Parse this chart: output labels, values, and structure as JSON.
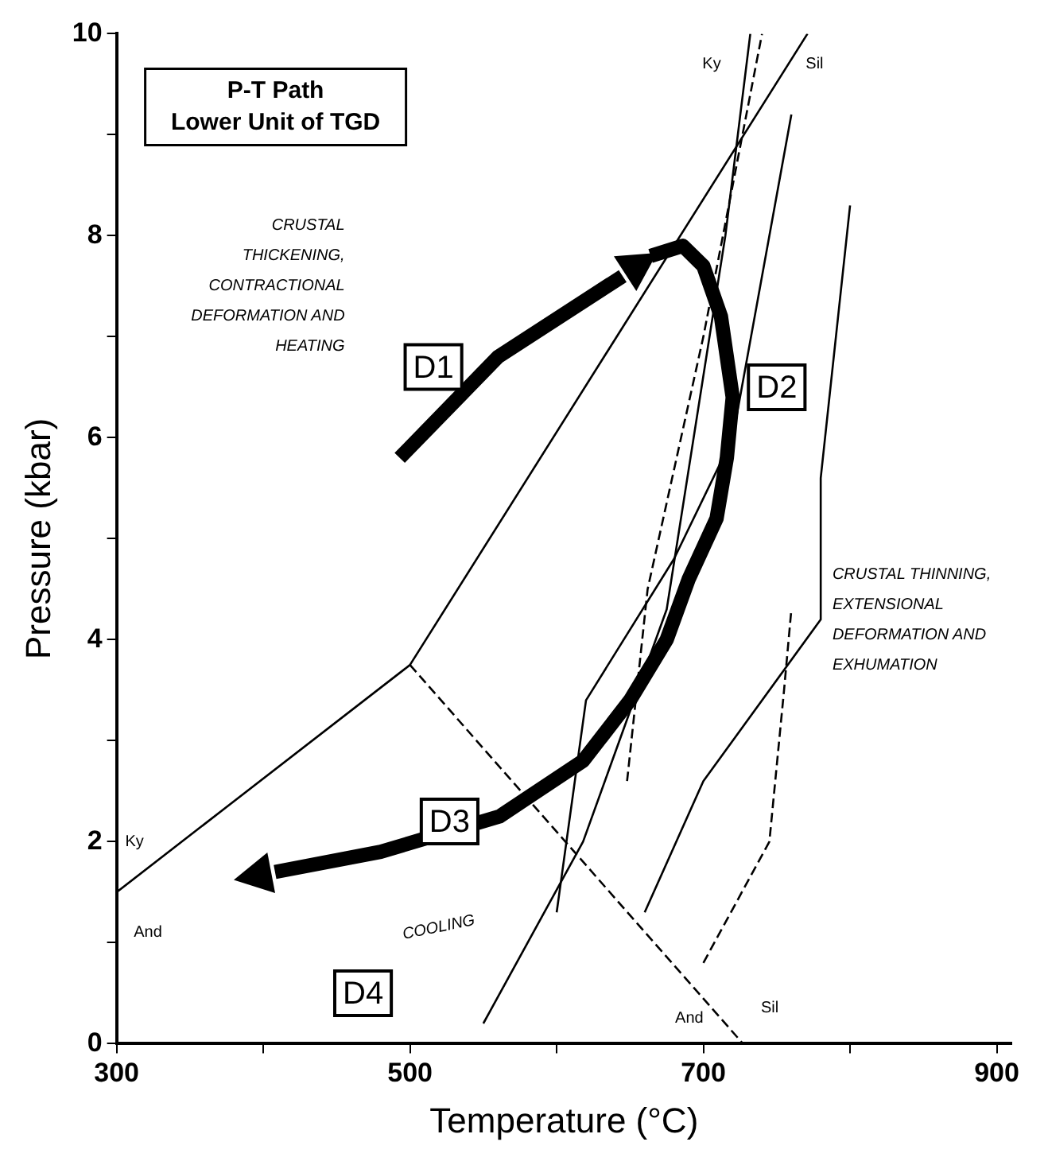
{
  "chart_data": {
    "type": "line",
    "title": "P-T Path",
    "subtitle": "Lower Unit of TGD",
    "xlabel": "Temperature (°C)",
    "ylabel": "Pressure (kbar)",
    "xlim": [
      300,
      910
    ],
    "xticks": [
      300,
      {
        "value": 400,
        "label": null
      },
      500,
      {
        "value": 600,
        "label": null
      },
      700,
      {
        "value": 800,
        "label": null
      },
      900
    ],
    "ylim": [
      0,
      10
    ],
    "yticks": [
      0,
      {
        "value": 1,
        "label": null
      },
      2,
      {
        "value": 3,
        "label": null
      },
      4,
      {
        "value": 5,
        "label": null
      },
      6,
      {
        "value": 7,
        "label": null
      },
      8,
      {
        "value": 9,
        "label": null
      },
      10
    ],
    "grid": false,
    "legend": false,
    "marker": "none",
    "series": [
      {
        "color": "#000000",
        "line_style": "solid",
        "x": [
          493,
          560,
          645
        ],
        "values": [
          5.8,
          6.8,
          7.6
        ]
      },
      {
        "color": "#000000",
        "line_style": "solid",
        "x": [
          664,
          686,
          700,
          712,
          720,
          716,
          709,
          690,
          675,
          650,
          618,
          561,
          480,
          408
        ],
        "values": [
          7.8,
          7.9,
          7.7,
          7.2,
          6.4,
          5.8,
          5.2,
          4.6,
          4.0,
          3.4,
          2.8,
          2.25,
          1.9,
          1.7
        ]
      },
      {
        "color": "#000000",
        "line_style": "solid",
        "x": [
          300,
          500,
          771
        ],
        "values": [
          1.5,
          3.75,
          10
        ]
      },
      {
        "color": "#000000",
        "line_style": "dashed",
        "x": [
          500,
          727
        ],
        "values": [
          3.75,
          0
        ]
      },
      {
        "color": "#000000",
        "line_style": "solid",
        "x": [
          550,
          618,
          675,
          715,
          732
        ],
        "values": [
          0.2,
          2.0,
          4.3,
          8.0,
          10
        ]
      },
      {
        "color": "#000000",
        "line_style": "dashed",
        "x": [
          648,
          662,
          700,
          720,
          740
        ],
        "values": [
          2.6,
          4.5,
          7.0,
          8.5,
          10
        ]
      },
      {
        "color": "#000000",
        "line_style": "dashed",
        "x": [
          700,
          745,
          755,
          760
        ],
        "values": [
          0.8,
          2.0,
          3.5,
          4.3
        ]
      },
      {
        "color": "#000000",
        "line_style": "solid",
        "x": [
          600,
          620,
          680,
          720,
          760
        ],
        "values": [
          1.3,
          3.4,
          4.8,
          6.0,
          9.2
        ]
      },
      {
        "color": "#000000",
        "line_style": "solid",
        "x": [
          660,
          700,
          780,
          780,
          800
        ],
        "values": [
          1.3,
          2.6,
          4.2,
          5.6,
          8.3
        ]
      }
    ],
    "annotations": [
      "CRUSTAL THICKENING, CONTRACTIONAL DEFORMATION AND HEATING",
      "COOLING",
      "CRUSTAL THINNING, EXTENSIONAL DEFORMATION AND EXHUMATION",
      {
        "text": "D1",
        "x": 516,
        "y": 6.7
      },
      {
        "text": "D2",
        "x": 750,
        "y": 6.5
      },
      {
        "text": "D3",
        "x": 527,
        "y": 2.2
      },
      {
        "text": "D4",
        "x": 468,
        "y": 0.5
      },
      "And",
      "Ky",
      "And",
      "Sil",
      "Ky",
      "Sil"
    ]
  }
}
